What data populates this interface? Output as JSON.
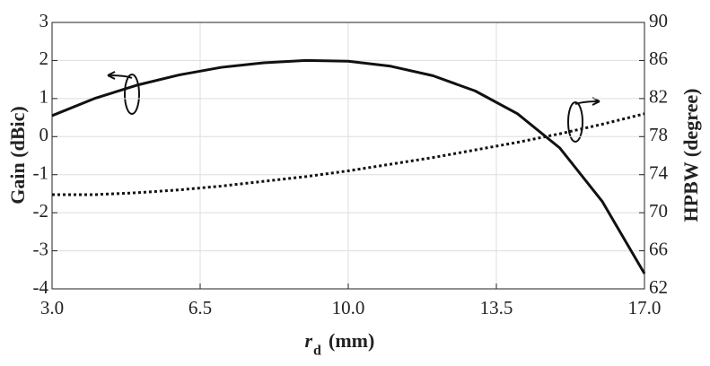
{
  "chart_data": {
    "type": "line",
    "x_label": {
      "symbol": "r",
      "subscript": "d",
      "unit": "(mm)"
    },
    "y_label": "Gain (dBic)",
    "y2_label": "HPBW (degree)",
    "x": [
      3,
      4,
      5,
      6,
      7,
      8,
      9,
      10,
      11,
      12,
      13,
      14,
      15,
      16,
      17
    ],
    "series": [
      {
        "name": "Gain",
        "color": "#111111",
        "dash": "solid",
        "axis": "y",
        "values": [
          0.55,
          1.0,
          1.35,
          1.62,
          1.82,
          1.94,
          2.0,
          1.98,
          1.85,
          1.6,
          1.2,
          0.6,
          -0.3,
          -1.7,
          -3.6
        ]
      },
      {
        "name": "HPBW",
        "color": "#111111",
        "dash": "dotted",
        "axis": "y2",
        "values": [
          71.9,
          71.9,
          72.1,
          72.4,
          72.8,
          73.3,
          73.8,
          74.4,
          75.1,
          75.8,
          76.6,
          77.4,
          78.3,
          79.3,
          80.4
        ]
      }
    ],
    "xlim": [
      3,
      17
    ],
    "xticks": [
      {
        "value": 3,
        "label": "3.0"
      },
      6.5,
      {
        "value": 10,
        "label": "10.0"
      },
      13.5,
      {
        "value": 17,
        "label": "17.0"
      }
    ],
    "ylim": [
      -4,
      3
    ],
    "yticks": [
      -4,
      -3,
      -2,
      -1,
      0,
      1,
      2,
      3
    ],
    "y2lim": [
      62,
      90
    ],
    "y2ticks": [
      62,
      66,
      70,
      74,
      78,
      82,
      86,
      90
    ],
    "grid": true
  }
}
